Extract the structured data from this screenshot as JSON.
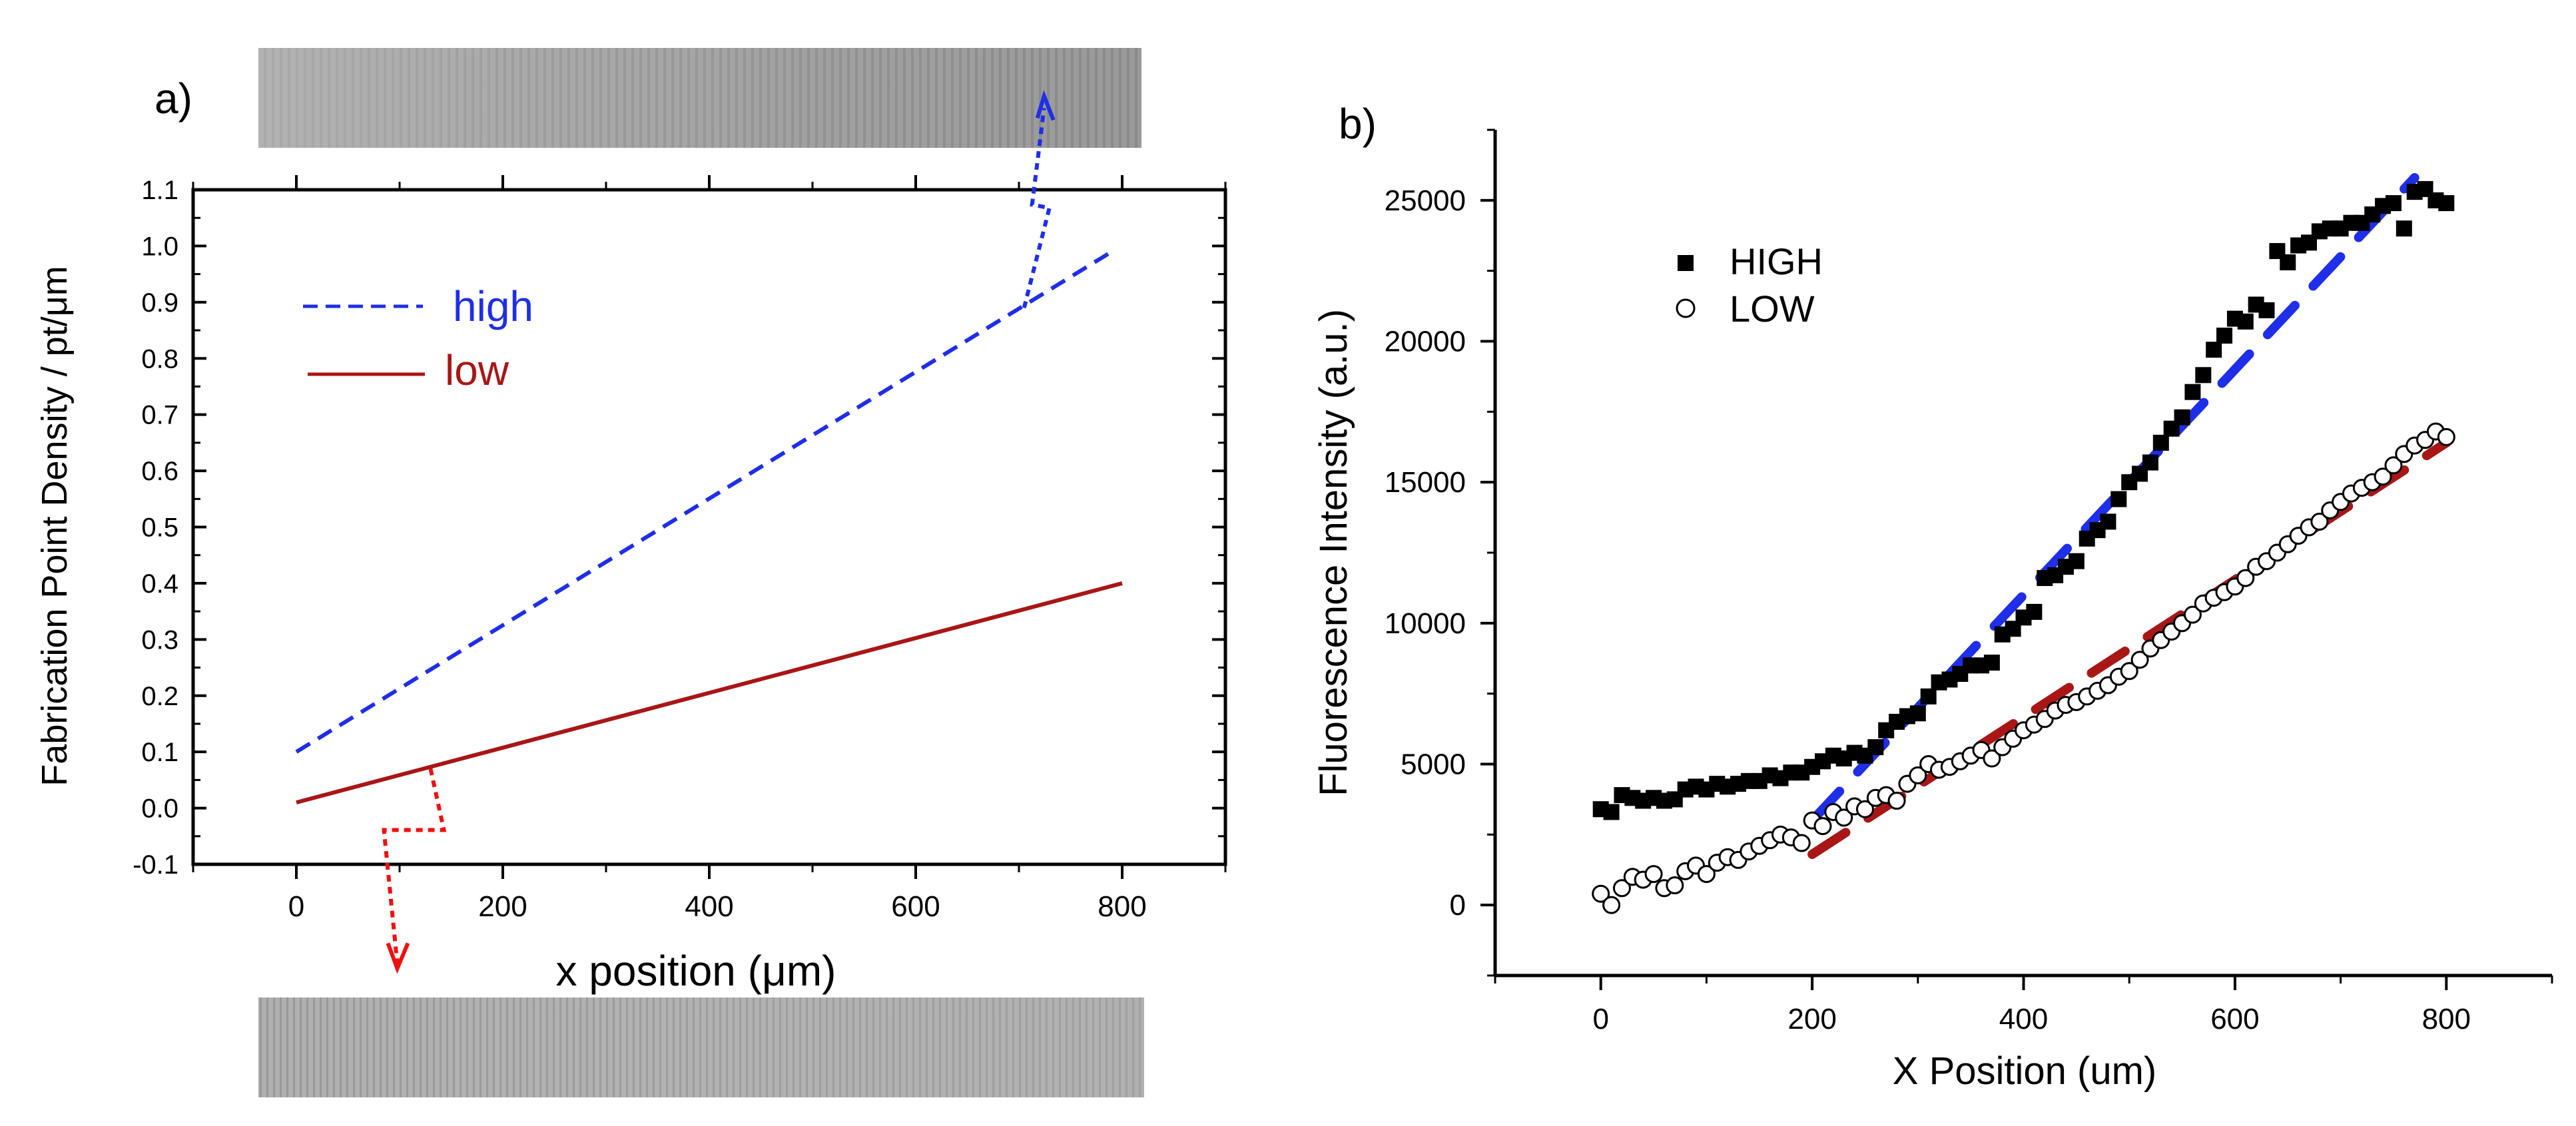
{
  "colors": {
    "high": "#1f2ee8",
    "low": "#a81616",
    "arrow": "#ee1111",
    "axis": "#000000"
  },
  "panels": {
    "a_label": "a)",
    "b_label": "b)"
  },
  "chart_data": [
    {
      "type": "line",
      "title": "",
      "panel_label": "a)",
      "xlabel": "x position (μm)",
      "ylabel": "Fabrication Point Density / pt/μm",
      "xlim": [
        -100,
        900
      ],
      "ylim": [
        -0.1,
        1.1
      ],
      "xticks": [
        0,
        200,
        400,
        600,
        800
      ],
      "yticks": [
        -0.1,
        0.0,
        0.1,
        0.2,
        0.3,
        0.4,
        0.5,
        0.6,
        0.7,
        0.8,
        0.9,
        1.0,
        1.1
      ],
      "ytick_labels": [
        "-0.1",
        "0.0",
        "0.1",
        "0.2",
        "0.3",
        "0.4",
        "0.5",
        "0.6",
        "0.7",
        "0.8",
        "0.9",
        "1.0",
        "1.1"
      ],
      "legend_position": "top-left",
      "series": [
        {
          "name": "high",
          "style": "dashed",
          "x": [
            0,
            790
          ],
          "y": [
            0.1,
            0.99
          ]
        },
        {
          "name": "low",
          "style": "solid",
          "x": [
            0,
            800
          ],
          "y": [
            0.01,
            0.4
          ]
        }
      ],
      "annotations": [
        {
          "type": "arrow",
          "from_x": 705,
          "from_y": 0.89,
          "to": "top-image"
        },
        {
          "type": "arrow",
          "from_x": 130,
          "from_y": 0.07,
          "to": "bottom-image"
        }
      ]
    },
    {
      "type": "scatter",
      "title": "",
      "panel_label": "b)",
      "xlabel": "X Position (um)",
      "ylabel": "Fluorescence Intensity (a.u.)",
      "xlim": [
        -100,
        900
      ],
      "ylim": [
        -2500,
        27500
      ],
      "xticks": [
        0,
        200,
        400,
        600,
        800
      ],
      "yticks": [
        0,
        5000,
        10000,
        15000,
        20000,
        25000
      ],
      "legend_position": "top-left",
      "series": [
        {
          "name": "HIGH",
          "marker": "filled-square",
          "x": [
            0,
            10,
            20,
            30,
            40,
            50,
            60,
            70,
            80,
            90,
            100,
            110,
            120,
            130,
            140,
            150,
            160,
            170,
            180,
            190,
            200,
            210,
            220,
            230,
            240,
            250,
            260,
            270,
            280,
            290,
            300,
            310,
            320,
            330,
            340,
            350,
            360,
            370,
            380,
            390,
            400,
            410,
            420,
            430,
            440,
            450,
            460,
            470,
            480,
            490,
            500,
            510,
            520,
            530,
            540,
            550,
            560,
            570,
            580,
            590,
            600,
            610,
            620,
            630,
            640,
            650,
            660,
            670,
            680,
            690,
            700,
            710,
            720,
            730,
            740,
            750,
            760,
            770,
            780,
            790,
            800
          ],
          "y": [
            3400,
            3300,
            3900,
            3800,
            3700,
            3800,
            3700,
            3750,
            4100,
            4200,
            4100,
            4300,
            4200,
            4300,
            4400,
            4400,
            4600,
            4500,
            4700,
            4700,
            4900,
            5100,
            5300,
            5200,
            5400,
            5300,
            5600,
            6200,
            6500,
            6700,
            6800,
            7400,
            7900,
            8000,
            8200,
            8500,
            8500,
            8600,
            9600,
            9800,
            10200,
            10400,
            11600,
            11700,
            12000,
            12200,
            13000,
            13300,
            13600,
            14400,
            15000,
            15300,
            15700,
            16400,
            16900,
            17300,
            18200,
            18800,
            19700,
            20200,
            20800,
            20700,
            21300,
            21100,
            23200,
            22800,
            23400,
            23500,
            23900,
            24000,
            24000,
            24200,
            24200,
            24500,
            24800,
            24900,
            24000,
            25300,
            25400,
            25000,
            24900
          ]
        },
        {
          "name": "LOW",
          "marker": "open-circle",
          "x": [
            0,
            10,
            20,
            30,
            40,
            50,
            60,
            70,
            80,
            90,
            100,
            110,
            120,
            130,
            140,
            150,
            160,
            170,
            180,
            190,
            200,
            210,
            220,
            230,
            240,
            250,
            260,
            270,
            280,
            290,
            300,
            310,
            320,
            330,
            340,
            350,
            360,
            370,
            380,
            390,
            400,
            410,
            420,
            430,
            440,
            450,
            460,
            470,
            480,
            490,
            500,
            510,
            520,
            530,
            540,
            550,
            560,
            570,
            580,
            590,
            600,
            610,
            620,
            630,
            640,
            650,
            660,
            670,
            680,
            690,
            700,
            710,
            720,
            730,
            740,
            750,
            760,
            770,
            780,
            790,
            800
          ],
          "y": [
            400,
            0,
            600,
            1000,
            900,
            1100,
            600,
            700,
            1200,
            1400,
            1100,
            1500,
            1700,
            1600,
            1900,
            2100,
            2300,
            2500,
            2400,
            2200,
            3000,
            2800,
            3300,
            3100,
            3500,
            3400,
            3800,
            3900,
            3700,
            4300,
            4600,
            5000,
            4800,
            4900,
            5100,
            5300,
            5500,
            5200,
            5600,
            5900,
            6200,
            6400,
            6600,
            6900,
            7100,
            7200,
            7400,
            7600,
            7800,
            8100,
            8300,
            8700,
            9100,
            9400,
            9700,
            10000,
            10300,
            10700,
            10900,
            11100,
            11300,
            11600,
            12000,
            12200,
            12500,
            12800,
            13100,
            13400,
            13600,
            14000,
            14300,
            14600,
            14800,
            15000,
            15200,
            15600,
            16000,
            16300,
            16500,
            16800,
            16600
          ]
        }
      ],
      "fit_lines": [
        {
          "name": "HIGH fit",
          "style": "dashed",
          "x": [
            200,
            770
          ],
          "y": [
            3000,
            25800
          ]
        },
        {
          "name": "LOW fit",
          "style": "dashed",
          "x": [
            200,
            800
          ],
          "y": [
            1800,
            16400
          ]
        }
      ]
    }
  ]
}
